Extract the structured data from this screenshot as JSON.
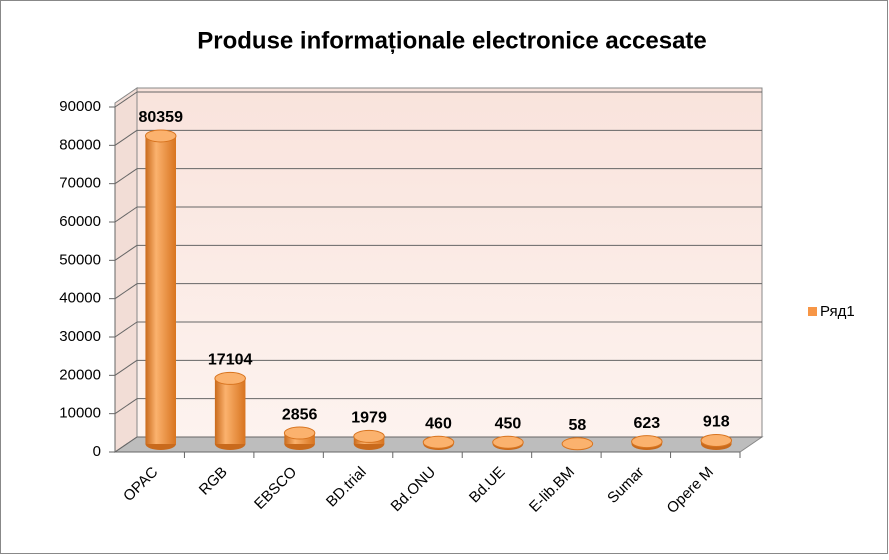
{
  "chart_data": {
    "type": "bar",
    "title": "Produse informaționale electronice accesate",
    "categories": [
      "OPAC",
      "RGB",
      "EBSCO",
      "BD.trial",
      "Bd.ONU",
      "Bd.UE",
      "E-lib.BM",
      "Sumar",
      "Opere M"
    ],
    "series": [
      {
        "name": "Ряд1",
        "color": "#f79646",
        "values": [
          80359,
          17104,
          2856,
          1979,
          460,
          450,
          58,
          623,
          918
        ]
      }
    ],
    "ylim": [
      0,
      90000
    ],
    "yticks": [
      0,
      10000,
      20000,
      30000,
      40000,
      50000,
      60000,
      70000,
      80000,
      90000
    ],
    "grid": true,
    "legend": "right",
    "data_labels": true
  }
}
